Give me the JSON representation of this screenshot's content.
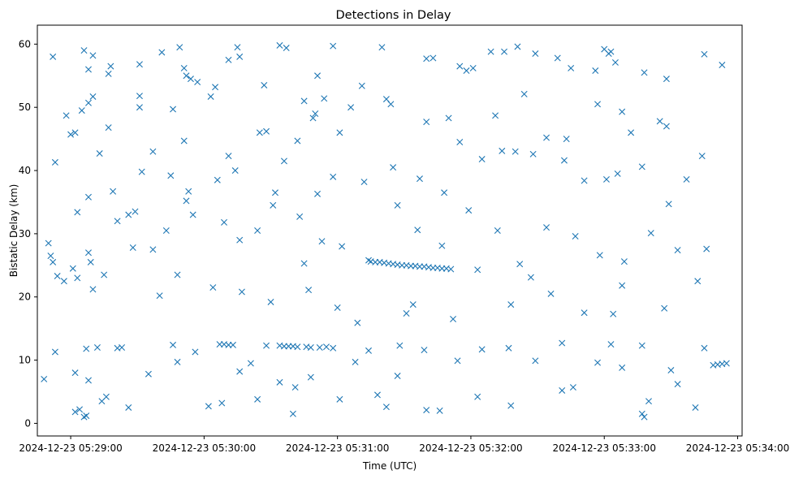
{
  "chart_data": {
    "type": "scatter",
    "title": "Detections in Delay",
    "xlabel": "Time (UTC)",
    "ylabel": "Bistatic Delay (km)",
    "xlim": [
      "2024-12-23 05:28:45",
      "2024-12-23 05:34:02"
    ],
    "ylim": [
      -2,
      63
    ],
    "x_ticks": [
      "2024-12-23 05:29:00",
      "2024-12-23 05:30:00",
      "2024-12-23 05:31:00",
      "2024-12-23 05:32:00",
      "2024-12-23 05:33:00",
      "2024-12-23 05:34:00"
    ],
    "y_ticks": [
      0,
      10,
      20,
      30,
      40,
      50,
      60
    ],
    "marker": "x",
    "grid": false,
    "series": [
      {
        "color": "#1f77b4",
        "points": [
          [
            "05:28:52",
            58.0
          ],
          [
            "05:28:58",
            48.7
          ],
          [
            "05:29:06",
            59.0
          ],
          [
            "05:29:08",
            56.0
          ],
          [
            "05:29:10",
            58.2
          ],
          [
            "05:29:18",
            56.5
          ],
          [
            "05:29:17",
            55.3
          ],
          [
            "05:29:31",
            56.8
          ],
          [
            "05:29:41",
            58.7
          ],
          [
            "05:29:49",
            59.5
          ],
          [
            "05:29:52",
            55.0
          ],
          [
            "05:29:51",
            56.2
          ],
          [
            "05:29:57",
            54.0
          ],
          [
            "05:30:05",
            53.2
          ],
          [
            "05:30:11",
            57.5
          ],
          [
            "05:30:15",
            59.5
          ],
          [
            "05:30:16",
            58.0
          ],
          [
            "05:30:27",
            53.5
          ],
          [
            "05:30:34",
            59.8
          ],
          [
            "05:30:37",
            59.4
          ],
          [
            "05:30:51",
            55.0
          ],
          [
            "05:30:58",
            59.7
          ],
          [
            "05:31:20",
            59.5
          ],
          [
            "05:31:40",
            57.7
          ],
          [
            "05:31:43",
            57.8
          ],
          [
            "05:31:55",
            56.5
          ],
          [
            "05:31:58",
            55.8
          ],
          [
            "05:32:01",
            56.2
          ],
          [
            "05:32:09",
            58.8
          ],
          [
            "05:32:15",
            58.8
          ],
          [
            "05:32:21",
            59.6
          ],
          [
            "05:32:24",
            52.1
          ],
          [
            "05:32:29",
            58.5
          ],
          [
            "05:32:39",
            57.8
          ],
          [
            "05:32:45",
            56.2
          ],
          [
            "05:32:56",
            55.8
          ],
          [
            "05:33:00",
            59.2
          ],
          [
            "05:33:02",
            58.5
          ],
          [
            "05:33:03",
            58.8
          ],
          [
            "05:33:05",
            57.1
          ],
          [
            "05:33:18",
            55.5
          ],
          [
            "05:33:28",
            54.5
          ],
          [
            "05:33:45",
            58.4
          ],
          [
            "05:33:53",
            56.7
          ],
          [
            "05:29:02",
            46.0
          ],
          [
            "05:29:05",
            49.5
          ],
          [
            "05:29:08",
            50.7
          ],
          [
            "05:29:10",
            51.7
          ],
          [
            "05:29:17",
            46.8
          ],
          [
            "05:29:31",
            51.8
          ],
          [
            "05:29:31",
            50.0
          ],
          [
            "05:29:46",
            49.7
          ],
          [
            "05:29:54",
            54.5
          ],
          [
            "05:30:03",
            51.7
          ],
          [
            "05:30:25",
            46.0
          ],
          [
            "05:30:28",
            46.2
          ],
          [
            "05:30:45",
            51.0
          ],
          [
            "05:30:49",
            48.3
          ],
          [
            "05:30:50",
            49.0
          ],
          [
            "05:30:54",
            51.4
          ],
          [
            "05:31:01",
            46.0
          ],
          [
            "05:31:06",
            50.0
          ],
          [
            "05:31:11",
            53.4
          ],
          [
            "05:31:22",
            51.3
          ],
          [
            "05:31:24",
            50.5
          ],
          [
            "05:31:40",
            47.7
          ],
          [
            "05:31:50",
            48.3
          ],
          [
            "05:32:11",
            48.7
          ],
          [
            "05:32:20",
            43.0
          ],
          [
            "05:32:34",
            45.2
          ],
          [
            "05:32:43",
            45.0
          ],
          [
            "05:32:57",
            50.5
          ],
          [
            "05:33:08",
            49.3
          ],
          [
            "05:33:12",
            46.0
          ],
          [
            "05:33:25",
            47.8
          ],
          [
            "05:33:28",
            47.0
          ],
          [
            "05:33:44",
            42.3
          ],
          [
            "05:28:53",
            41.3
          ],
          [
            "05:29:00",
            45.7
          ],
          [
            "05:29:13",
            42.7
          ],
          [
            "05:29:19",
            36.7
          ],
          [
            "05:29:26",
            33.0
          ],
          [
            "05:29:32",
            39.8
          ],
          [
            "05:29:37",
            43.0
          ],
          [
            "05:29:45",
            39.2
          ],
          [
            "05:29:51",
            44.7
          ],
          [
            "05:29:53",
            36.7
          ],
          [
            "05:30:06",
            38.5
          ],
          [
            "05:30:11",
            42.3
          ],
          [
            "05:30:14",
            40.0
          ],
          [
            "05:30:32",
            36.5
          ],
          [
            "05:30:36",
            41.5
          ],
          [
            "05:30:42",
            44.7
          ],
          [
            "05:30:51",
            36.3
          ],
          [
            "05:30:58",
            39.0
          ],
          [
            "05:31:12",
            38.2
          ],
          [
            "05:31:25",
            40.5
          ],
          [
            "05:31:37",
            38.7
          ],
          [
            "05:31:48",
            36.5
          ],
          [
            "05:31:55",
            44.5
          ],
          [
            "05:32:05",
            41.8
          ],
          [
            "05:32:14",
            43.1
          ],
          [
            "05:32:28",
            42.6
          ],
          [
            "05:32:42",
            41.6
          ],
          [
            "05:32:51",
            38.4
          ],
          [
            "05:33:01",
            38.6
          ],
          [
            "05:33:06",
            39.5
          ],
          [
            "05:33:17",
            40.6
          ],
          [
            "05:33:29",
            34.7
          ],
          [
            "05:33:37",
            38.6
          ],
          [
            "05:28:50",
            28.5
          ],
          [
            "05:28:51",
            26.5
          ],
          [
            "05:28:52",
            25.5
          ],
          [
            "05:28:54",
            23.3
          ],
          [
            "05:28:57",
            22.5
          ],
          [
            "05:29:01",
            24.5
          ],
          [
            "05:29:03",
            23.0
          ],
          [
            "05:29:08",
            27.0
          ],
          [
            "05:29:09",
            25.5
          ],
          [
            "05:29:10",
            21.2
          ],
          [
            "05:29:15",
            23.5
          ],
          [
            "05:29:21",
            32.0
          ],
          [
            "05:29:29",
            33.5
          ],
          [
            "05:29:37",
            27.5
          ],
          [
            "05:29:43",
            30.5
          ],
          [
            "05:29:48",
            23.5
          ],
          [
            "05:29:55",
            33.0
          ],
          [
            "05:30:09",
            31.8
          ],
          [
            "05:30:16",
            29.0
          ],
          [
            "05:30:24",
            30.5
          ],
          [
            "05:30:31",
            34.5
          ],
          [
            "05:30:43",
            32.7
          ],
          [
            "05:30:53",
            28.8
          ],
          [
            "05:31:02",
            28.0
          ],
          [
            "05:31:14",
            25.8
          ],
          [
            "05:31:27",
            34.5
          ],
          [
            "05:31:36",
            30.6
          ],
          [
            "05:31:47",
            28.1
          ],
          [
            "05:31:59",
            33.7
          ],
          [
            "05:32:12",
            30.5
          ],
          [
            "05:32:22",
            25.2
          ],
          [
            "05:32:34",
            31.0
          ],
          [
            "05:32:47",
            29.6
          ],
          [
            "05:32:58",
            26.6
          ],
          [
            "05:33:09",
            25.6
          ],
          [
            "05:33:21",
            30.1
          ],
          [
            "05:33:33",
            27.4
          ],
          [
            "05:33:46",
            27.6
          ],
          [
            "05:31:15",
            25.6
          ],
          [
            "05:31:17",
            25.5
          ],
          [
            "05:31:19",
            25.5
          ],
          [
            "05:31:21",
            25.4
          ],
          [
            "05:31:23",
            25.3
          ],
          [
            "05:31:25",
            25.2
          ],
          [
            "05:31:27",
            25.1
          ],
          [
            "05:31:29",
            25.0
          ],
          [
            "05:31:31",
            25.0
          ],
          [
            "05:31:33",
            24.9
          ],
          [
            "05:31:35",
            24.9
          ],
          [
            "05:31:37",
            24.8
          ],
          [
            "05:31:39",
            24.8
          ],
          [
            "05:31:41",
            24.7
          ],
          [
            "05:31:43",
            24.6
          ],
          [
            "05:31:45",
            24.6
          ],
          [
            "05:31:47",
            24.5
          ],
          [
            "05:31:49",
            24.5
          ],
          [
            "05:31:51",
            24.4
          ],
          [
            "05:32:03",
            24.3
          ],
          [
            "05:29:07",
            11.8
          ],
          [
            "05:29:12",
            12.0
          ],
          [
            "05:29:21",
            11.9
          ],
          [
            "05:29:23",
            12.0
          ],
          [
            "05:29:46",
            12.4
          ],
          [
            "05:29:56",
            11.3
          ],
          [
            "05:30:07",
            12.5
          ],
          [
            "05:30:09",
            12.5
          ],
          [
            "05:30:11",
            12.4
          ],
          [
            "05:30:13",
            12.4
          ],
          [
            "05:30:28",
            12.3
          ],
          [
            "05:30:34",
            12.3
          ],
          [
            "05:30:36",
            12.2
          ],
          [
            "05:30:38",
            12.2
          ],
          [
            "05:30:40",
            12.2
          ],
          [
            "05:30:42",
            12.1
          ],
          [
            "05:30:46",
            12.1
          ],
          [
            "05:30:48",
            12.0
          ],
          [
            "05:30:52",
            12.0
          ],
          [
            "05:30:55",
            12.1
          ],
          [
            "05:30:58",
            11.9
          ],
          [
            "05:31:14",
            11.5
          ],
          [
            "05:31:28",
            12.3
          ],
          [
            "05:31:39",
            11.6
          ],
          [
            "05:32:05",
            11.7
          ],
          [
            "05:32:17",
            11.9
          ],
          [
            "05:32:41",
            12.7
          ],
          [
            "05:33:03",
            12.5
          ],
          [
            "05:33:17",
            12.3
          ],
          [
            "05:33:45",
            11.9
          ],
          [
            "05:33:49",
            9.2
          ],
          [
            "05:33:51",
            9.3
          ],
          [
            "05:33:53",
            9.4
          ],
          [
            "05:33:55",
            9.5
          ],
          [
            "05:28:48",
            7.0
          ],
          [
            "05:28:53",
            11.3
          ],
          [
            "05:29:02",
            8.0
          ],
          [
            "05:29:08",
            6.8
          ],
          [
            "05:29:14",
            3.5
          ],
          [
            "05:29:26",
            2.5
          ],
          [
            "05:29:35",
            7.8
          ],
          [
            "05:29:48",
            9.7
          ],
          [
            "05:30:02",
            2.7
          ],
          [
            "05:30:08",
            3.2
          ],
          [
            "05:30:16",
            8.2
          ],
          [
            "05:30:21",
            9.5
          ],
          [
            "05:30:34",
            6.5
          ],
          [
            "05:30:41",
            5.7
          ],
          [
            "05:30:48",
            7.3
          ],
          [
            "05:31:01",
            3.8
          ],
          [
            "05:31:08",
            9.7
          ],
          [
            "05:31:18",
            4.5
          ],
          [
            "05:31:27",
            7.5
          ],
          [
            "05:31:40",
            2.1
          ],
          [
            "05:31:46",
            2.0
          ],
          [
            "05:31:54",
            9.9
          ],
          [
            "05:32:03",
            4.2
          ],
          [
            "05:32:18",
            2.8
          ],
          [
            "05:32:29",
            9.9
          ],
          [
            "05:32:41",
            5.2
          ],
          [
            "05:32:57",
            9.6
          ],
          [
            "05:33:08",
            8.8
          ],
          [
            "05:33:20",
            3.5
          ],
          [
            "05:33:30",
            8.4
          ],
          [
            "05:33:41",
            2.5
          ],
          [
            "05:29:02",
            1.8
          ],
          [
            "05:29:04",
            2.2
          ],
          [
            "05:29:06",
            1.0
          ],
          [
            "05:29:07",
            1.2
          ],
          [
            "05:33:17",
            1.5
          ],
          [
            "05:33:18",
            1.0
          ],
          [
            "05:30:40",
            1.5
          ],
          [
            "05:29:16",
            4.2
          ],
          [
            "05:30:24",
            3.8
          ],
          [
            "05:31:22",
            2.6
          ],
          [
            "05:32:46",
            5.7
          ],
          [
            "05:33:33",
            6.2
          ],
          [
            "05:31:00",
            18.3
          ],
          [
            "05:31:09",
            15.9
          ],
          [
            "05:31:31",
            17.4
          ],
          [
            "05:31:52",
            16.5
          ],
          [
            "05:32:18",
            18.8
          ],
          [
            "05:32:36",
            20.5
          ],
          [
            "05:32:51",
            17.5
          ],
          [
            "05:33:04",
            17.3
          ],
          [
            "05:33:27",
            18.2
          ],
          [
            "05:29:40",
            20.2
          ],
          [
            "05:30:04",
            21.5
          ],
          [
            "05:30:17",
            20.8
          ],
          [
            "05:30:30",
            19.2
          ],
          [
            "05:30:47",
            21.1
          ],
          [
            "05:29:03",
            33.4
          ],
          [
            "05:29:08",
            35.8
          ],
          [
            "05:29:28",
            27.8
          ],
          [
            "05:29:52",
            35.2
          ],
          [
            "05:30:45",
            25.3
          ],
          [
            "05:31:34",
            18.8
          ],
          [
            "05:32:27",
            23.1
          ],
          [
            "05:33:08",
            21.8
          ],
          [
            "05:33:42",
            22.5
          ]
        ]
      }
    ]
  }
}
